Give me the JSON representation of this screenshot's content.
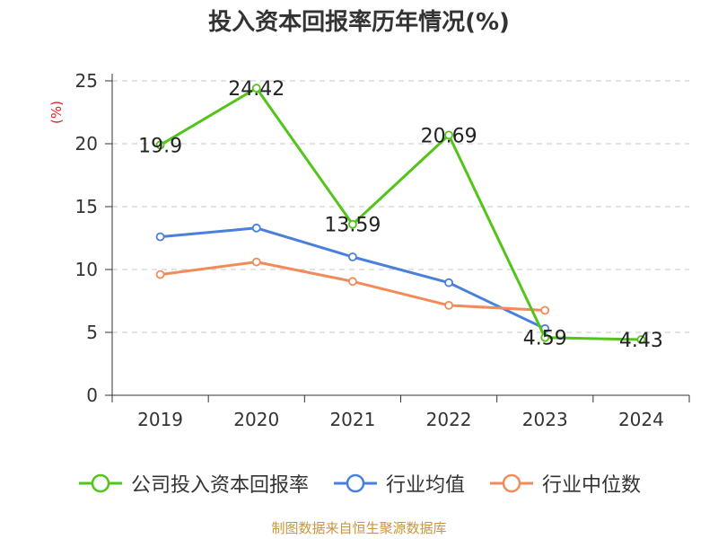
{
  "title": "投入资本回报率历年情况(%)",
  "source": "制图数据来自恒生聚源数据库",
  "chart_data": {
    "type": "line",
    "title": "投入资本回报率历年情况(%)",
    "ylabel": "(%)",
    "xlabel": "",
    "categories": [
      "2019",
      "2020",
      "2021",
      "2022",
      "2023",
      "2024"
    ],
    "ylim": [
      0,
      25
    ],
    "yticks": [
      "0",
      "5",
      "10",
      "15",
      "20",
      "25"
    ],
    "grid": true,
    "legend_position": "bottom",
    "series": [
      {
        "name": "公司投入资本回报率",
        "color": "#52c41a",
        "values": [
          19.9,
          24.42,
          13.59,
          20.69,
          4.59,
          4.43
        ],
        "labels": [
          "19.9",
          "24.42",
          "13.59",
          "20.69",
          "4.59",
          "4.43"
        ]
      },
      {
        "name": "行业均值",
        "color": "#4a7fdc",
        "values": [
          12.6,
          13.3,
          11.0,
          8.95,
          5.3,
          null
        ]
      },
      {
        "name": "行业中位数",
        "color": "#f28b5a",
        "values": [
          9.6,
          10.6,
          9.05,
          7.15,
          6.75,
          null
        ]
      }
    ]
  }
}
